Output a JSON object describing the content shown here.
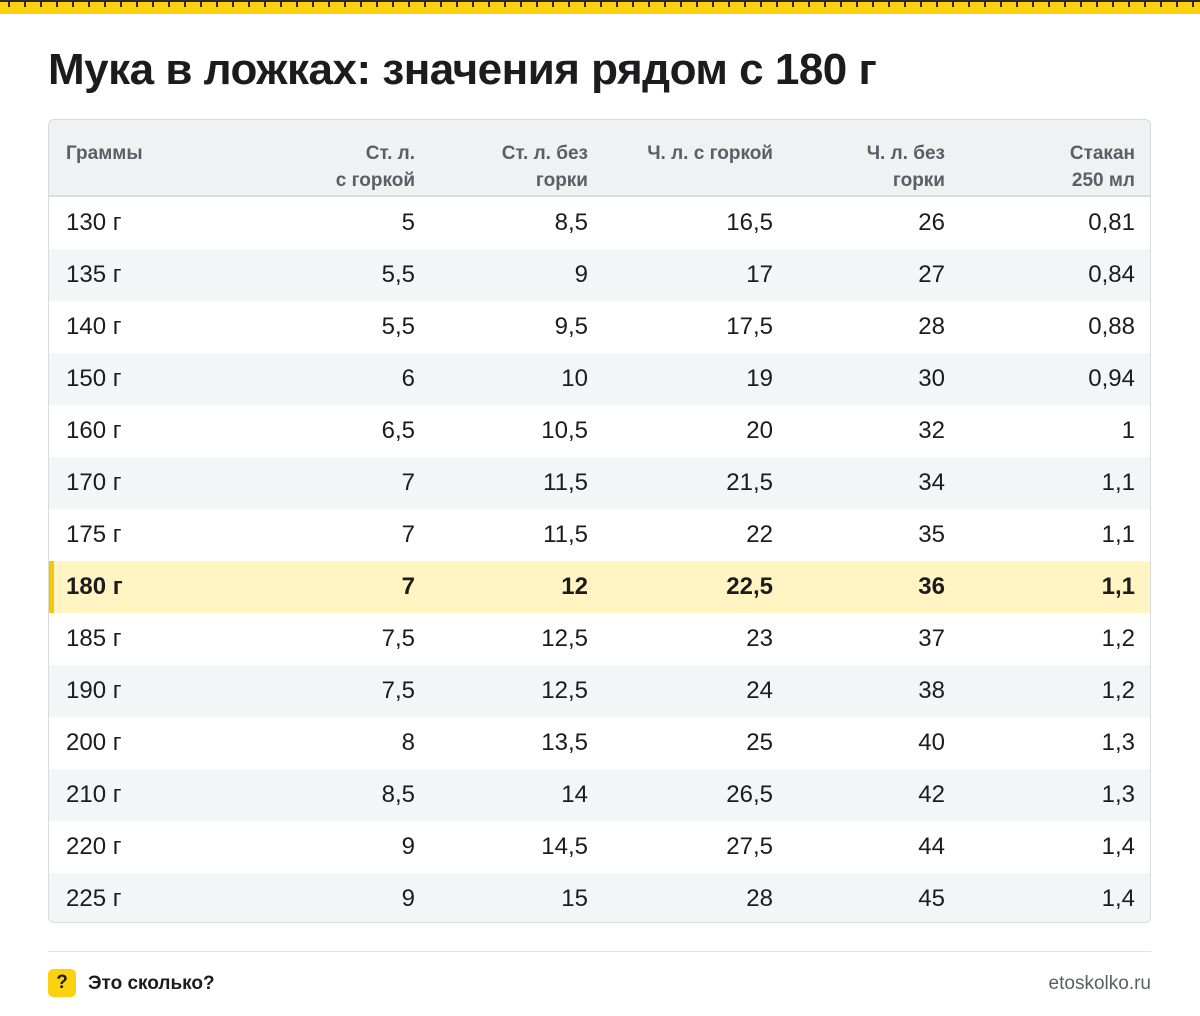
{
  "title": "Мука в ложках: значения рядом с 180 г",
  "table": {
    "columns": [
      [
        "Граммы"
      ],
      [
        "Ст. л.",
        "с горкой"
      ],
      [
        "Ст. л. без",
        "горки"
      ],
      [
        "Ч. л. с горкой"
      ],
      [
        "Ч. л. без",
        "горки"
      ],
      [
        "Стакан",
        "250 мл"
      ]
    ],
    "highlight_row_index": 7,
    "rows": [
      [
        "130 г",
        "5",
        "8,5",
        "16,5",
        "26",
        "0,81"
      ],
      [
        "135 г",
        "5,5",
        "9",
        "17",
        "27",
        "0,84"
      ],
      [
        "140 г",
        "5,5",
        "9,5",
        "17,5",
        "28",
        "0,88"
      ],
      [
        "150 г",
        "6",
        "10",
        "19",
        "30",
        "0,94"
      ],
      [
        "160 г",
        "6,5",
        "10,5",
        "20",
        "32",
        "1"
      ],
      [
        "170 г",
        "7",
        "11,5",
        "21,5",
        "34",
        "1,1"
      ],
      [
        "175 г",
        "7",
        "11,5",
        "22",
        "35",
        "1,1"
      ],
      [
        "180 г",
        "7",
        "12",
        "22,5",
        "36",
        "1,1"
      ],
      [
        "185 г",
        "7,5",
        "12,5",
        "23",
        "37",
        "1,2"
      ],
      [
        "190 г",
        "7,5",
        "12,5",
        "24",
        "38",
        "1,2"
      ],
      [
        "200 г",
        "8",
        "13,5",
        "25",
        "40",
        "1,3"
      ],
      [
        "210 г",
        "8,5",
        "14",
        "26,5",
        "42",
        "1,3"
      ],
      [
        "220 г",
        "9",
        "14,5",
        "27,5",
        "44",
        "1,4"
      ],
      [
        "225 г",
        "9",
        "15",
        "28",
        "45",
        "1,4"
      ]
    ]
  },
  "footer": {
    "logo_glyph": "?",
    "brand": "Это сколько?",
    "site": "etoskolko.ru"
  },
  "colors": {
    "accent": "#fcd20f",
    "highlight_row": "#fff4c2",
    "highlight_marker": "#f6c600"
  }
}
